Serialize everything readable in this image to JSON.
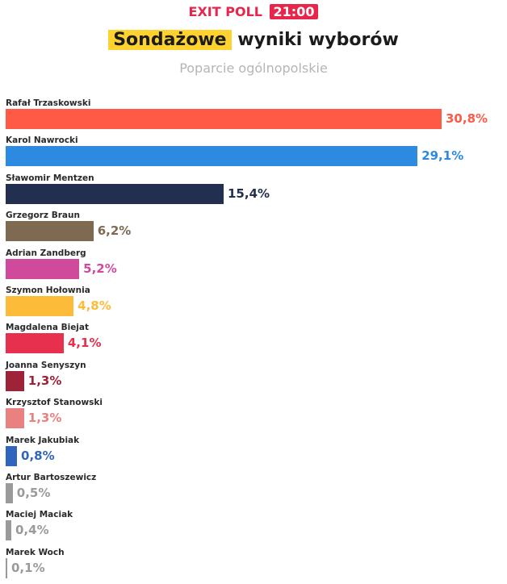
{
  "header": {
    "poll_label": "EXIT POLL",
    "poll_time": "21:00",
    "title_highlight": "Sondażowe",
    "title_rest": "wyniki wyborów",
    "subtitle": "Poparcie ogólnopolskie"
  },
  "chart_data": {
    "type": "bar",
    "orientation": "horizontal",
    "title": "Sondażowe wyniki wyborów",
    "subtitle": "Poparcie ogólnopolskie",
    "unit": "%",
    "xlim": [
      0,
      30.8
    ],
    "grid": false,
    "categories": [
      "Rafał Trzaskowski",
      "Karol Nawrocki",
      "Sławomir Mentzen",
      "Grzegorz Braun",
      "Adrian Zandberg",
      "Szymon Hołownia",
      "Magdalena Biejat",
      "Joanna Senyszyn",
      "Krzysztof Stanowski",
      "Marek Jakubiak",
      "Artur Bartoszewicz",
      "Maciej Maciak",
      "Marek Woch"
    ],
    "values": [
      30.8,
      29.1,
      15.4,
      6.2,
      5.2,
      4.8,
      4.1,
      1.3,
      1.3,
      0.8,
      0.5,
      0.4,
      0.1
    ],
    "value_labels": [
      "30,8%",
      "29,1%",
      "15,4%",
      "6,2%",
      "5,2%",
      "4,8%",
      "4,1%",
      "1,3%",
      "1,3%",
      "0,8%",
      "0,5%",
      "0,4%",
      "0,1%"
    ],
    "colors": [
      "#ff5a45",
      "#2c8be0",
      "#232f4e",
      "#7e6a50",
      "#d04a9c",
      "#fcbc3a",
      "#e6304e",
      "#9e2238",
      "#e98180",
      "#3064bd",
      "#9a9a9a",
      "#9a9a9a",
      "#9a9a9a"
    ]
  }
}
